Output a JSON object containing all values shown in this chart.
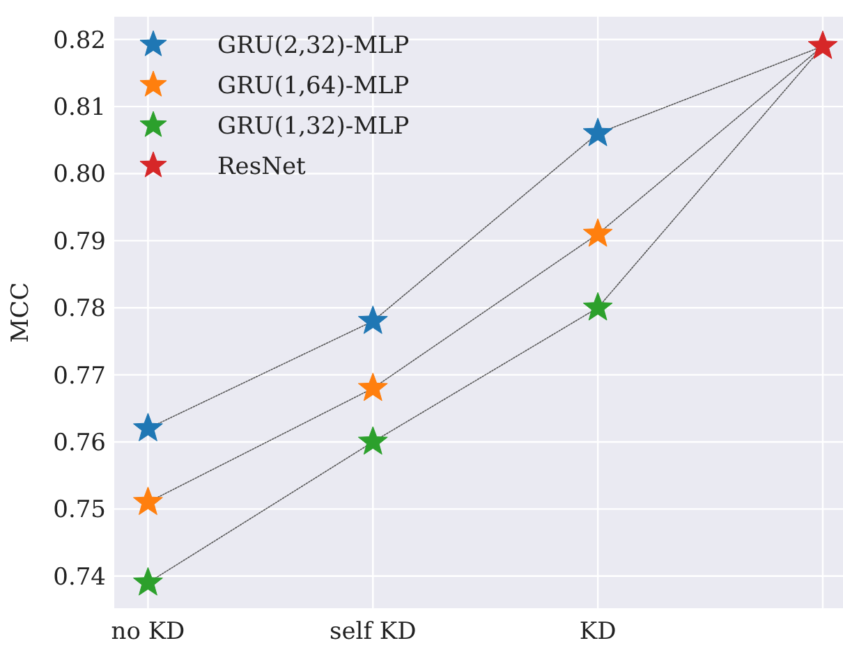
{
  "chart_data": {
    "type": "scatter",
    "ylabel": "MCC",
    "categories": [
      "no KD",
      "self KD",
      "KD",
      null
    ],
    "ylim": [
      0.7352,
      0.8234
    ],
    "yticks": [
      0.74,
      0.75,
      0.76,
      0.77,
      0.78,
      0.79,
      {
        "value": 0.8,
        "label": "0.80"
      },
      0.81,
      0.82
    ],
    "grid": true,
    "legend": "top left",
    "marker": "star",
    "series": [
      {
        "type": "line",
        "color": "#555555",
        "line_style": "dotted",
        "marker": "none",
        "values": [
          0.762,
          0.778,
          0.806,
          0.819
        ]
      },
      {
        "type": "line",
        "color": "#555555",
        "line_style": "dotted",
        "marker": "none",
        "values": [
          0.751,
          0.768,
          0.791,
          0.819
        ]
      },
      {
        "type": "line",
        "color": "#555555",
        "line_style": "dotted",
        "marker": "none",
        "values": [
          0.739,
          0.76,
          0.78,
          0.819
        ]
      },
      {
        "name": "GRU(2,32)-MLP",
        "color": "#1f77b4",
        "values": [
          0.762,
          0.778,
          0.806,
          null
        ]
      },
      {
        "name": "GRU(1,64)-MLP",
        "color": "#ff7f0e",
        "values": [
          0.751,
          0.768,
          0.791,
          null
        ]
      },
      {
        "name": "GRU(1,32)-MLP",
        "color": "#2ca02c",
        "values": [
          0.739,
          0.76,
          0.78,
          null
        ]
      },
      {
        "name": "ResNet",
        "color": "#d62728",
        "values": [
          null,
          null,
          null,
          0.819
        ]
      }
    ]
  }
}
